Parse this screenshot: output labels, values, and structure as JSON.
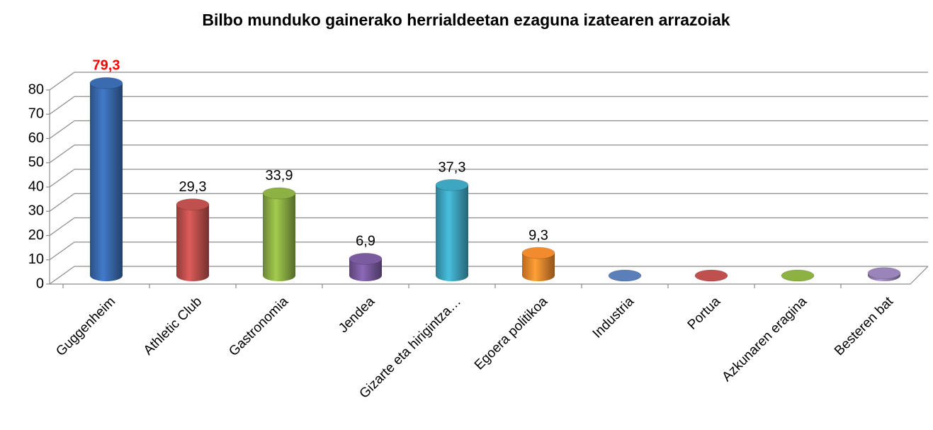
{
  "chart_data": {
    "type": "bar3d",
    "title": "Bilbo munduko gainerako herrialdeetan ezaguna izatearen arrazoiak",
    "categories": [
      "Guggenheim",
      "Athletic Club",
      "Gastronomia",
      "Jendea",
      "Gizarte eta hirigintza…",
      "Egoera politikoa",
      "Industria",
      "Portua",
      "Azkunaren eragina",
      "Besteren bat"
    ],
    "values": [
      79.3,
      29.3,
      33.9,
      6.9,
      37.3,
      9.3,
      0,
      0,
      0,
      1
    ],
    "value_labels": [
      "79,3",
      "29,3",
      "33,9",
      "6,9",
      "37,3",
      "9,3",
      null,
      null,
      null,
      null
    ],
    "colors": [
      "#3a6bb0",
      "#c0504d",
      "#8eb144",
      "#7a5ba0",
      "#3fa6c2",
      "#f28a2e",
      "#5b7fb8",
      "#c0504d",
      "#8eb144",
      "#9a85bb"
    ],
    "highlight_color": "#ff0000",
    "ylim": [
      0,
      80
    ],
    "yticks": [
      0,
      10,
      20,
      30,
      40,
      50,
      60,
      70,
      80
    ],
    "grid": true
  }
}
